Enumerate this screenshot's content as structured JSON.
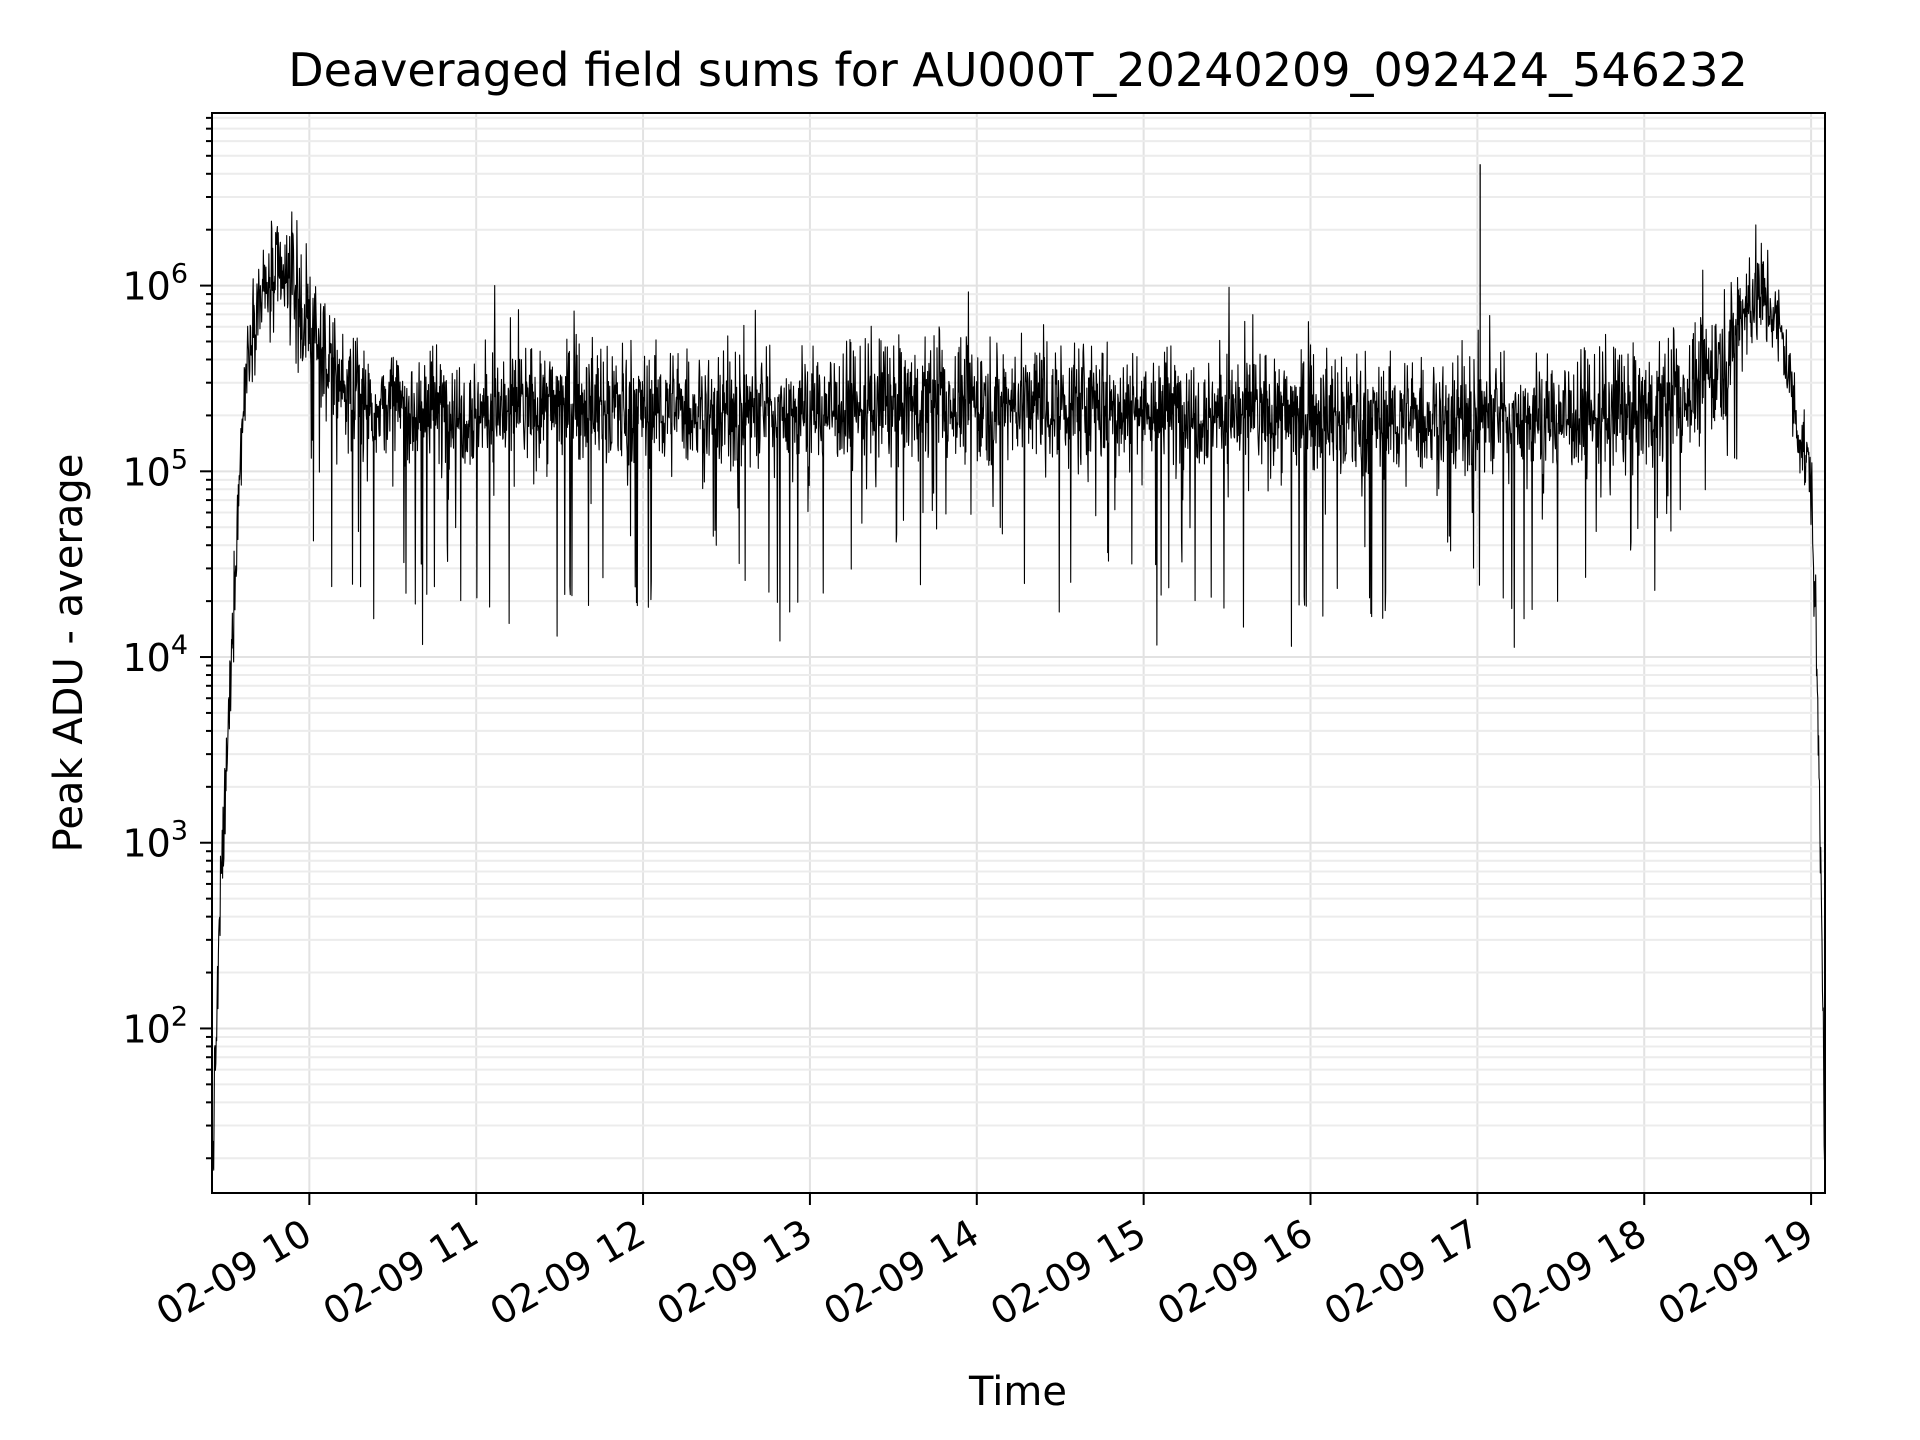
{
  "chart_data": {
    "type": "line",
    "title": "Deaveraged field sums for AU000T_20240209_092424_546232",
    "xlabel": "Time",
    "ylabel": "Peak ADU - average",
    "x_axis": "datetime",
    "xlim": [
      "2024-02-09T09:25",
      "2024-02-09T19:05"
    ],
    "y_scale": "log",
    "ylim": [
      13,
      8500000
    ],
    "grid": true,
    "line_color": "#000000",
    "x_ticks": [
      "02-09 10",
      "02-09 11",
      "02-09 12",
      "02-09 13",
      "02-09 14",
      "02-09 15",
      "02-09 16",
      "02-09 17",
      "02-09 18",
      "02-09 19"
    ],
    "y_ticks": [
      {
        "base": "10",
        "exp": "2",
        "value": 100
      },
      {
        "base": "10",
        "exp": "3",
        "value": 1000
      },
      {
        "base": "10",
        "exp": "4",
        "value": 10000
      },
      {
        "base": "10",
        "exp": "5",
        "value": 100000
      },
      {
        "base": "10",
        "exp": "6",
        "value": 1000000
      }
    ],
    "series": [
      {
        "x": [
          "09:25",
          "09:28",
          "09:30",
          "09:32",
          "09:34",
          "09:36",
          "09:38",
          "09:40",
          "09:43",
          "09:46",
          "09:50",
          "09:55",
          "10:00",
          "10:05",
          "10:10",
          "10:15",
          "10:20",
          "10:30",
          "10:45",
          "11:00",
          "11:30",
          "12:00",
          "12:30",
          "13:00",
          "13:30",
          "14:00",
          "14:30",
          "15:00",
          "15:30",
          "16:00",
          "16:30",
          "16:59",
          "17:01",
          "17:30",
          "18:00",
          "18:10",
          "18:20",
          "18:30",
          "18:35",
          "18:40",
          "18:45",
          "18:50",
          "18:55",
          "19:00",
          "19:02",
          "19:04",
          "19:05"
        ],
        "y": [
          15,
          500,
          2000,
          10000,
          50000,
          200000,
          450000,
          700000,
          900000,
          1000000,
          1050000,
          950000,
          600000,
          400000,
          320000,
          260000,
          230000,
          220000,
          220000,
          210000,
          230000,
          220000,
          210000,
          220000,
          230000,
          240000,
          230000,
          220000,
          210000,
          200000,
          190000,
          200000,
          4500000,
          200000,
          210000,
          230000,
          300000,
          450000,
          700000,
          900000,
          800000,
          500000,
          180000,
          90000,
          10000,
          300,
          15
        ]
      }
    ]
  }
}
